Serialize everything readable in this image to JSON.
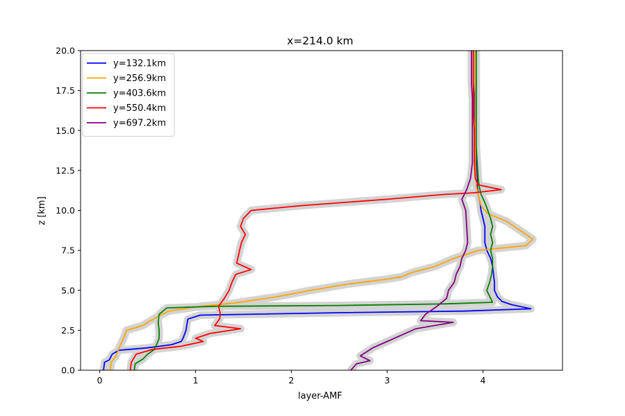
{
  "chart_data": {
    "type": "line",
    "title": "x=214.0 km",
    "xlabel": "layer-AMF",
    "ylabel": "z [km]",
    "xlim": [
      -0.2,
      4.83
    ],
    "ylim": [
      0,
      20
    ],
    "xticks": [
      0,
      1,
      2,
      3,
      4
    ],
    "yticks": [
      0.0,
      2.5,
      5.0,
      7.5,
      10.0,
      12.5,
      15.0,
      17.5,
      20.0
    ],
    "xtick_labels": [
      "0",
      "1",
      "2",
      "3",
      "4"
    ],
    "ytick_labels": [
      "0.0",
      "2.5",
      "5.0",
      "7.5",
      "10.0",
      "12.5",
      "15.0",
      "17.5",
      "20.0"
    ],
    "grid": false,
    "legend_position": "top-left",
    "uncertainty_band_color": "#d3d3d3",
    "series": [
      {
        "name": "y=132.1km",
        "color": "#0000ff",
        "points": [
          [
            0.04,
            0.0
          ],
          [
            0.05,
            0.5
          ],
          [
            0.1,
            0.65
          ],
          [
            0.13,
            1.0
          ],
          [
            0.2,
            1.25
          ],
          [
            0.5,
            1.4
          ],
          [
            0.75,
            1.6
          ],
          [
            0.85,
            1.8
          ],
          [
            0.87,
            2.0
          ],
          [
            0.9,
            2.5
          ],
          [
            0.92,
            3.2
          ],
          [
            1.05,
            3.45
          ],
          [
            2.5,
            3.6
          ],
          [
            3.8,
            3.7
          ],
          [
            4.5,
            3.85
          ],
          [
            4.3,
            4.1
          ],
          [
            4.2,
            4.3
          ],
          [
            4.15,
            4.6
          ],
          [
            4.12,
            5.0
          ],
          [
            4.12,
            5.5
          ],
          [
            4.11,
            6.0
          ],
          [
            4.1,
            6.5
          ],
          [
            4.08,
            7.0
          ],
          [
            4.04,
            7.5
          ],
          [
            4.02,
            8.0
          ],
          [
            4.02,
            8.5
          ],
          [
            4.02,
            9.0
          ],
          [
            4.0,
            9.5
          ],
          [
            3.98,
            10.0
          ],
          [
            3.97,
            10.5
          ],
          [
            3.95,
            11.0
          ],
          [
            3.94,
            11.5
          ],
          [
            3.94,
            12.0
          ],
          [
            3.93,
            13.0
          ],
          [
            3.92,
            14.0
          ],
          [
            3.91,
            15.0
          ],
          [
            3.91,
            16.0
          ],
          [
            3.91,
            17.0
          ],
          [
            3.9,
            18.0
          ],
          [
            3.9,
            19.0
          ],
          [
            3.9,
            20.0
          ]
        ]
      },
      {
        "name": "y=256.9km",
        "color": "#ffa500",
        "points": [
          [
            0.11,
            0.0
          ],
          [
            0.12,
            0.5
          ],
          [
            0.17,
            0.9
          ],
          [
            0.21,
            1.5
          ],
          [
            0.25,
            2.0
          ],
          [
            0.28,
            2.5
          ],
          [
            0.45,
            2.8
          ],
          [
            0.5,
            3.0
          ],
          [
            0.62,
            3.4
          ],
          [
            0.72,
            3.7
          ],
          [
            1.05,
            4.0
          ],
          [
            1.4,
            4.2
          ],
          [
            1.85,
            4.6
          ],
          [
            2.2,
            5.0
          ],
          [
            2.6,
            5.4
          ],
          [
            3.0,
            5.7
          ],
          [
            3.15,
            5.85
          ],
          [
            3.25,
            6.1
          ],
          [
            3.5,
            6.5
          ],
          [
            3.7,
            7.0
          ],
          [
            3.95,
            7.5
          ],
          [
            4.45,
            7.8
          ],
          [
            4.52,
            8.2
          ],
          [
            4.4,
            8.7
          ],
          [
            4.25,
            9.3
          ],
          [
            4.05,
            9.8
          ],
          [
            3.98,
            10.3
          ],
          [
            3.95,
            11.0
          ],
          [
            3.93,
            11.5
          ],
          [
            3.93,
            12.0
          ],
          [
            3.92,
            13.0
          ],
          [
            3.92,
            14.0
          ],
          [
            3.92,
            15.0
          ],
          [
            3.92,
            16.0
          ],
          [
            3.92,
            17.0
          ],
          [
            3.92,
            18.0
          ],
          [
            3.92,
            19.0
          ],
          [
            3.92,
            20.0
          ]
        ]
      },
      {
        "name": "y=403.6km",
        "color": "#008000",
        "points": [
          [
            0.36,
            0.0
          ],
          [
            0.37,
            0.4
          ],
          [
            0.45,
            0.7
          ],
          [
            0.5,
            1.0
          ],
          [
            0.57,
            1.3
          ],
          [
            0.6,
            1.7
          ],
          [
            0.62,
            2.0
          ],
          [
            0.62,
            2.5
          ],
          [
            0.61,
            3.0
          ],
          [
            0.62,
            3.5
          ],
          [
            0.7,
            3.9
          ],
          [
            1.2,
            4.0
          ],
          [
            2.5,
            4.05
          ],
          [
            3.6,
            4.15
          ],
          [
            4.1,
            4.25
          ],
          [
            4.08,
            4.5
          ],
          [
            4.04,
            5.0
          ],
          [
            4.07,
            5.5
          ],
          [
            4.09,
            6.0
          ],
          [
            4.1,
            6.5
          ],
          [
            4.1,
            7.0
          ],
          [
            4.08,
            7.5
          ],
          [
            4.1,
            8.0
          ],
          [
            4.08,
            8.5
          ],
          [
            4.1,
            9.0
          ],
          [
            4.08,
            9.5
          ],
          [
            4.05,
            10.0
          ],
          [
            4.02,
            10.5
          ],
          [
            3.98,
            11.0
          ],
          [
            3.96,
            11.5
          ],
          [
            3.95,
            12.0
          ],
          [
            3.94,
            13.0
          ],
          [
            3.93,
            14.0
          ],
          [
            3.93,
            15.0
          ],
          [
            3.93,
            16.0
          ],
          [
            3.93,
            17.0
          ],
          [
            3.93,
            18.0
          ],
          [
            3.93,
            19.0
          ],
          [
            3.93,
            20.0
          ]
        ]
      },
      {
        "name": "y=550.4km",
        "color": "#ff0000",
        "points": [
          [
            0.32,
            0.0
          ],
          [
            0.33,
            0.5
          ],
          [
            0.38,
            1.0
          ],
          [
            0.55,
            1.3
          ],
          [
            0.85,
            1.5
          ],
          [
            1.08,
            1.8
          ],
          [
            1.0,
            2.0
          ],
          [
            1.15,
            2.3
          ],
          [
            1.47,
            2.6
          ],
          [
            1.2,
            2.8
          ],
          [
            1.25,
            3.2
          ],
          [
            1.26,
            3.5
          ],
          [
            1.24,
            4.0
          ],
          [
            1.3,
            4.5
          ],
          [
            1.35,
            5.0
          ],
          [
            1.38,
            5.5
          ],
          [
            1.42,
            6.0
          ],
          [
            1.58,
            6.3
          ],
          [
            1.43,
            6.7
          ],
          [
            1.46,
            7.5
          ],
          [
            1.48,
            8.0
          ],
          [
            1.52,
            8.5
          ],
          [
            1.47,
            9.0
          ],
          [
            1.5,
            9.5
          ],
          [
            1.58,
            10.0
          ],
          [
            2.1,
            10.3
          ],
          [
            3.0,
            10.7
          ],
          [
            3.6,
            11.0
          ],
          [
            3.9,
            11.1
          ],
          [
            4.19,
            11.3
          ],
          [
            3.95,
            11.6
          ],
          [
            3.92,
            12.0
          ],
          [
            3.91,
            13.0
          ],
          [
            3.91,
            14.0
          ],
          [
            3.91,
            15.0
          ],
          [
            3.9,
            16.0
          ],
          [
            3.9,
            17.0
          ],
          [
            3.9,
            18.0
          ],
          [
            3.9,
            19.0
          ],
          [
            3.9,
            20.0
          ]
        ]
      },
      {
        "name": "y=697.2km",
        "color": "#800080",
        "points": [
          [
            2.62,
            0.0
          ],
          [
            2.68,
            0.4
          ],
          [
            2.82,
            0.6
          ],
          [
            2.72,
            0.9
          ],
          [
            2.85,
            1.4
          ],
          [
            3.0,
            1.8
          ],
          [
            3.15,
            2.2
          ],
          [
            3.3,
            2.6
          ],
          [
            3.69,
            3.0
          ],
          [
            3.35,
            3.1
          ],
          [
            3.4,
            3.5
          ],
          [
            3.52,
            4.0
          ],
          [
            3.62,
            4.5
          ],
          [
            3.64,
            5.0
          ],
          [
            3.7,
            5.5
          ],
          [
            3.72,
            6.0
          ],
          [
            3.76,
            6.5
          ],
          [
            3.78,
            7.0
          ],
          [
            3.82,
            7.5
          ],
          [
            3.84,
            8.0
          ],
          [
            3.83,
            9.0
          ],
          [
            3.82,
            10.0
          ],
          [
            3.78,
            10.7
          ],
          [
            3.83,
            11.3
          ],
          [
            3.87,
            12.0
          ],
          [
            3.89,
            13.0
          ],
          [
            3.89,
            14.0
          ],
          [
            3.89,
            15.0
          ],
          [
            3.89,
            16.0
          ],
          [
            3.89,
            17.0
          ],
          [
            3.88,
            18.0
          ],
          [
            3.88,
            19.0
          ],
          [
            3.88,
            20.0
          ]
        ]
      }
    ]
  }
}
